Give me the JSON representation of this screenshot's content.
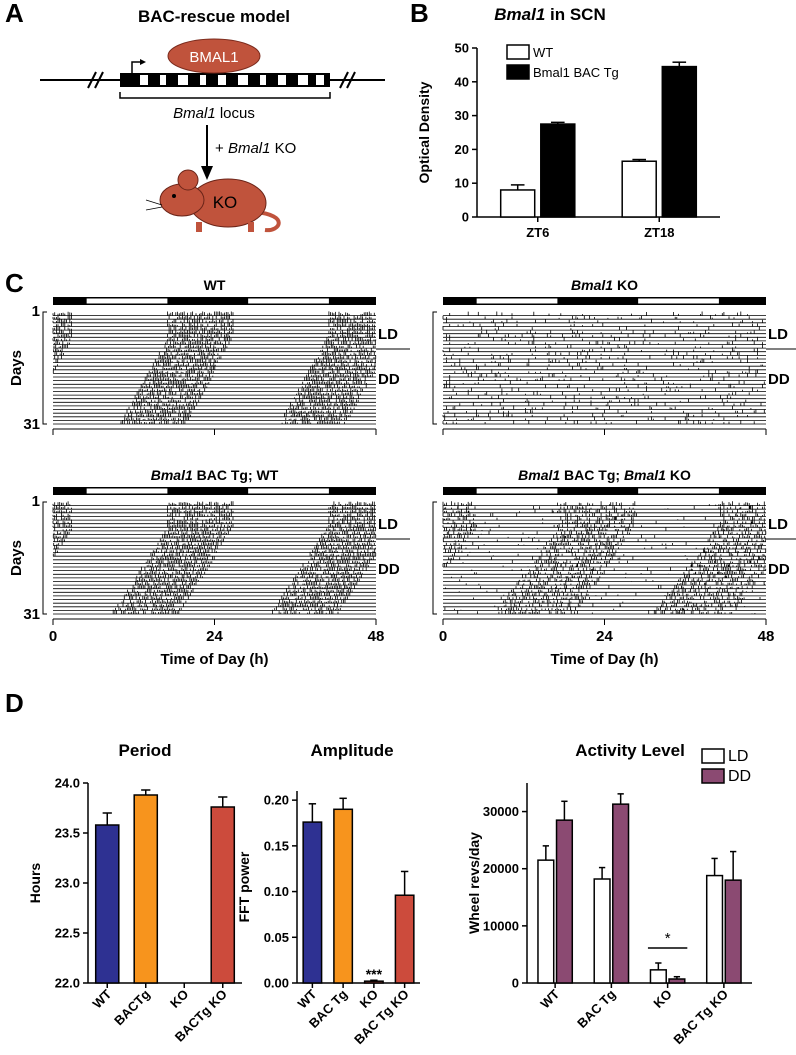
{
  "panel_labels": [
    "A",
    "B",
    "C",
    "D"
  ],
  "diagram": {
    "title": "BAC-rescue model",
    "protein": "BMAL1",
    "locus": [
      {
        "text": "Bmal1",
        "italic": true
      },
      {
        "text": " locus"
      }
    ],
    "cross": [
      {
        "text": "+ "
      },
      {
        "text": "Bmal1",
        "italic": true
      },
      {
        "text": " KO"
      }
    ],
    "mouse": "KO"
  },
  "actograms": {
    "days_label": "Days",
    "first_day": 1,
    "last_day": 31,
    "ld": "LD",
    "dd": "DD",
    "xlabel": "Time of Day (h)",
    "xlim": [
      0,
      48
    ],
    "xticks": [
      0,
      24,
      48
    ],
    "panels": [
      {
        "title": [
          {
            "text": "WT"
          }
        ]
      },
      {
        "title": [
          {
            "text": "Bmal1",
            "italic": true
          },
          {
            "text": " KO"
          }
        ]
      },
      {
        "title": [
          {
            "text": "Bmal1",
            "italic": true
          },
          {
            "text": " BAC Tg; WT"
          }
        ]
      },
      {
        "title": [
          {
            "text": "Bmal1",
            "italic": true
          },
          {
            "text": " BAC Tg; "
          },
          {
            "text": "Bmal1",
            "italic": true
          },
          {
            "text": " KO"
          }
        ]
      }
    ]
  },
  "chart_data": [
    {
      "type": "bar",
      "title": [
        {
          "text": "Bmal1",
          "italic": true
        },
        {
          "text": " in SCN"
        }
      ],
      "ylabel": "Optical Density",
      "categories": [
        "ZT6",
        "ZT18"
      ],
      "series": [
        {
          "name": "WT",
          "color": "#ffffff",
          "values": [
            8,
            16.5
          ],
          "errors": [
            1.5,
            0.5
          ]
        },
        {
          "name": "Bmal1 BAC Tg",
          "color": "#000000",
          "values": [
            27.5,
            44.5
          ],
          "errors": [
            0.5,
            1.3
          ]
        }
      ],
      "ylim": [
        0,
        50
      ],
      "yticks": [
        0,
        10,
        20,
        30,
        40,
        50
      ],
      "legend": "upper left"
    },
    {
      "type": "bar",
      "title": [
        {
          "text": "Period"
        }
      ],
      "ylabel": "Hours",
      "categories": [
        "WT",
        "BACTg",
        "KO",
        "BACTg KO"
      ],
      "values": [
        23.58,
        23.88,
        null,
        23.76
      ],
      "errors": [
        0.12,
        0.05,
        null,
        0.1
      ],
      "colors": [
        "#2e3192",
        "#f7941d",
        "#cc4b3c",
        "#cc4b3c"
      ],
      "ylim": [
        22,
        24
      ],
      "yticks": [
        {
          "value": 22,
          "label": "22.0"
        },
        22.5,
        {
          "value": 23,
          "label": "23.0"
        },
        23.5,
        {
          "value": 24,
          "label": "24.0"
        }
      ]
    },
    {
      "type": "bar",
      "title": [
        {
          "text": "Amplitude"
        }
      ],
      "ylabel": "FFT power",
      "categories": [
        "WT",
        "BAC Tg",
        "KO",
        "BAC Tg KO"
      ],
      "values": [
        0.176,
        0.19,
        0.002,
        0.096
      ],
      "errors": [
        0.02,
        0.012,
        0.001,
        0.026
      ],
      "colors": [
        "#2e3192",
        "#f7941d",
        "#cc4b3c",
        "#cc4b3c"
      ],
      "ylim": [
        0,
        0.21
      ],
      "yticks": [
        {
          "value": 0,
          "label": "0.00"
        },
        0.05,
        {
          "value": 0.1,
          "label": "0.10"
        },
        0.15,
        {
          "value": 0.2,
          "label": "0.20"
        }
      ],
      "annotation": "***"
    },
    {
      "type": "bar",
      "title": [
        {
          "text": "Activity Level"
        }
      ],
      "ylabel": "Wheel revs/day",
      "categories": [
        "WT",
        "BAC Tg",
        "KO",
        "BAC Tg KO"
      ],
      "series": [
        {
          "name": "LD",
          "color": "#ffffff",
          "values": [
            21500,
            18200,
            2300,
            18800
          ],
          "errors": [
            2500,
            2000,
            1200,
            3000
          ]
        },
        {
          "name": "DD",
          "color": "#8b4a72",
          "values": [
            28500,
            31300,
            700,
            18000
          ],
          "errors": [
            3300,
            1800,
            400,
            5000
          ]
        }
      ],
      "ylim": [
        0,
        35000
      ],
      "yticks": [
        0,
        10000,
        20000,
        30000
      ],
      "legend": "upper right",
      "annotation": "*"
    }
  ]
}
